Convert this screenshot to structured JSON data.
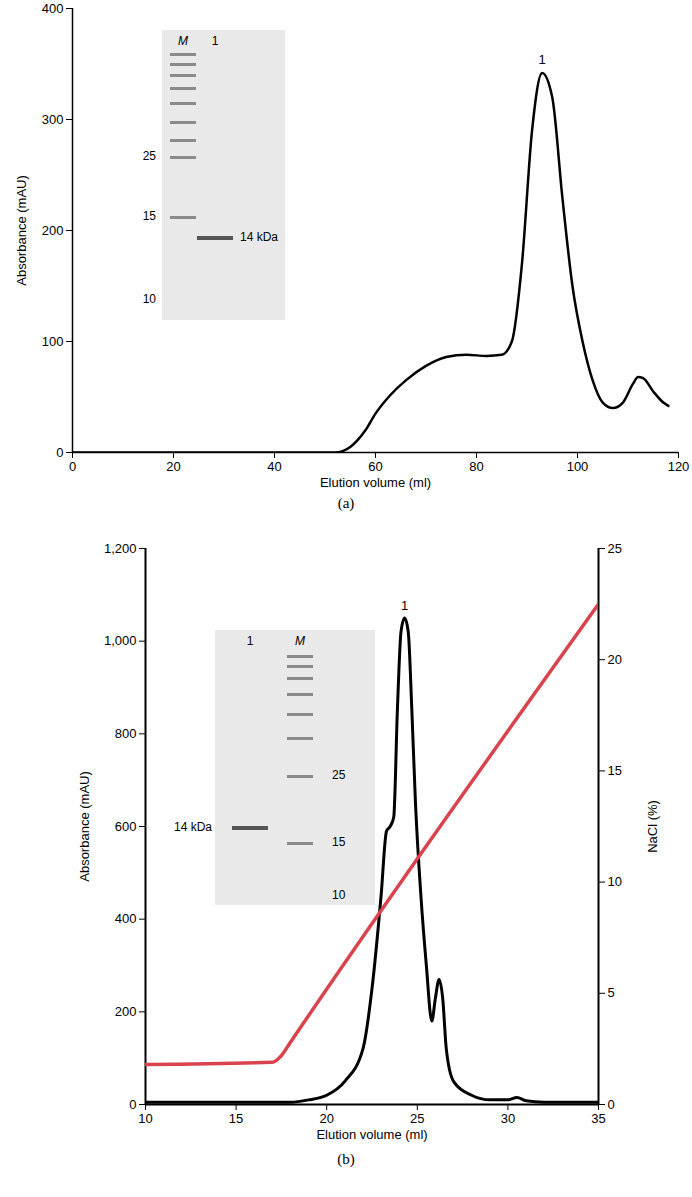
{
  "chart_data": [
    {
      "type": "line",
      "caption": "(a)",
      "x_label": "Elution volume (ml)",
      "y_label": "Absorbance (mAU)",
      "x": [
        0,
        52,
        55,
        58,
        60,
        63,
        66,
        70,
        74,
        78,
        82,
        85,
        87,
        89,
        91,
        93,
        95,
        97,
        99,
        101,
        103,
        105,
        107,
        109,
        111,
        112,
        113,
        115,
        117,
        118
      ],
      "values": [
        0,
        0,
        5,
        20,
        35,
        52,
        65,
        78,
        86,
        88,
        87,
        88,
        100,
        170,
        290,
        342,
        320,
        230,
        150,
        100,
        65,
        45,
        40,
        45,
        62,
        68,
        67,
        55,
        45,
        42
      ],
      "color": "#000000",
      "xlim": [
        0,
        120
      ],
      "xticks": [
        0,
        20,
        40,
        60,
        80,
        100,
        120
      ],
      "ylim": [
        0,
        400
      ],
      "yticks": [
        0,
        100,
        200,
        300,
        400
      ],
      "annotations": [
        {
          "text": "1",
          "x": 93,
          "y": 345
        }
      ],
      "gel": {
        "lanes": [
          "M",
          "1"
        ],
        "markers": [
          "25",
          "15",
          "10"
        ],
        "band_label": "14 kDa"
      }
    },
    {
      "type": "line",
      "caption": "(b)",
      "x_label": "Elution volume (ml)",
      "y_label": "Absorbance (mAU)",
      "y2_label": "NaCl (%)",
      "series": [
        {
          "color": "#000000",
          "x": [
            10,
            15,
            18,
            19,
            20,
            21,
            22,
            22.5,
            23,
            23.3,
            23.5,
            23.7,
            23.9,
            24.1,
            24.3,
            24.5,
            24.7,
            24.9,
            25.2,
            25.5,
            25.8,
            26,
            26.2,
            26.4,
            26.6,
            27,
            28,
            29,
            30,
            30.5,
            31,
            32,
            35
          ],
          "values": [
            5,
            5,
            5,
            10,
            20,
            50,
            120,
            250,
            450,
            590,
            600,
            620,
            850,
            1020,
            1050,
            1020,
            850,
            650,
            450,
            300,
            180,
            230,
            270,
            230,
            120,
            50,
            20,
            10,
            10,
            15,
            8,
            5,
            5
          ]
        },
        {
          "color": "#d9434e",
          "axis": "y2",
          "x": [
            10,
            17,
            17.5,
            18,
            35
          ],
          "values": [
            1.8,
            1.9,
            2.2,
            2.8,
            22.5
          ]
        }
      ],
      "xlim": [
        10,
        35
      ],
      "xticks": [
        10,
        15,
        20,
        25,
        30,
        35
      ],
      "ylim": [
        0,
        1200
      ],
      "yticks": [
        0,
        200,
        400,
        600,
        800,
        1000,
        1200
      ],
      "y2lim": [
        0,
        25
      ],
      "y2ticks": [
        0,
        5,
        10,
        15,
        20,
        25
      ],
      "annotations": [
        {
          "text": "1",
          "x": 24.3,
          "y": 1050
        }
      ],
      "gel": {
        "lanes": [
          "1",
          "M"
        ],
        "markers": [
          "25",
          "15",
          "10"
        ],
        "band_label": "14 kDa"
      }
    }
  ]
}
